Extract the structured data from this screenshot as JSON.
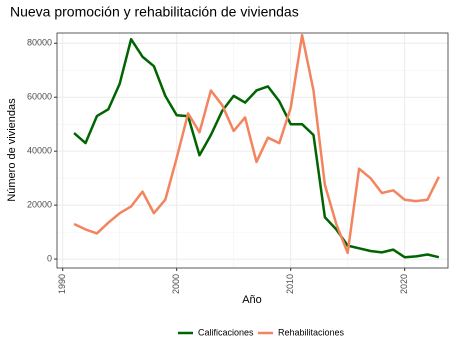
{
  "chart_data": {
    "type": "line",
    "title": "Nueva promoción y rehabilitación de viviendas",
    "x_label": "Año",
    "y_label": "Número de viviendas",
    "x": [
      1991,
      1992,
      1993,
      1994,
      1995,
      1996,
      1997,
      1998,
      1999,
      2000,
      2001,
      2002,
      2003,
      2004,
      2005,
      2006,
      2007,
      2008,
      2009,
      2010,
      2011,
      2012,
      2013,
      2014,
      2015,
      2016,
      2017,
      2018,
      2019,
      2020,
      2021,
      2022,
      2023
    ],
    "series": [
      {
        "name": "Calificaciones",
        "color": "#006400",
        "values": [
          46700,
          43000,
          53000,
          55500,
          65000,
          81500,
          75000,
          71500,
          60500,
          53300,
          53000,
          38500,
          46000,
          55000,
          60500,
          58000,
          62500,
          64000,
          58500,
          50000,
          50000,
          46000,
          15500,
          11000,
          5000,
          4000,
          3000,
          2500,
          3500,
          700,
          1000,
          1700,
          700
        ]
      },
      {
        "name": "Rehabilitaciones",
        "color": "#f4845f",
        "values": [
          13000,
          11000,
          9500,
          13500,
          17000,
          19500,
          25000,
          17000,
          22000,
          37500,
          54000,
          47000,
          62500,
          57000,
          47500,
          52500,
          36000,
          45000,
          43000,
          56000,
          83000,
          62500,
          27500,
          13000,
          2300,
          33500,
          30000,
          24500,
          25500,
          22000,
          21500,
          22000,
          30500
        ]
      }
    ],
    "xlim": [
      1989.5,
      2023.8
    ],
    "xticks": [
      1990,
      2000,
      2010,
      2020
    ],
    "ylim": [
      -3300,
      83800
    ],
    "yticks": [
      0,
      20000,
      40000,
      60000,
      80000
    ],
    "grid": true,
    "legend": "bottom"
  }
}
